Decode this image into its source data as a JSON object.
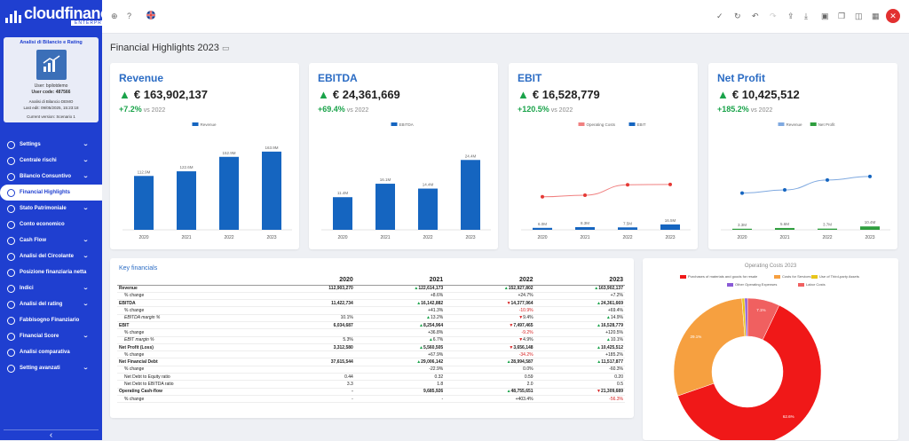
{
  "brand": {
    "name": "cloudfinance",
    "edition": "ENTERPRISE"
  },
  "card": {
    "title": "Analisi di Bilancio e Rating",
    "logo_text": "BILANCIO & RATING",
    "user": "User: bpilotdemo",
    "code": "User code: 487566",
    "analysis": "Analisi di Bilancio DEMO",
    "last": "Last edit: 09/05/2025, 15:23:18",
    "scenario": "Current version: Scenario 1"
  },
  "nav": [
    {
      "label": "Settings",
      "chev": true
    },
    {
      "label": "Centrale rischi",
      "chev": true
    },
    {
      "label": "Bilancio Consuntivo",
      "chev": true
    },
    {
      "label": "Financial Highlights",
      "chev": false,
      "active": true
    },
    {
      "label": "Stato Patrimoniale",
      "chev": true
    },
    {
      "label": "Conto economico",
      "chev": false
    },
    {
      "label": "Cash Flow",
      "chev": true
    },
    {
      "label": "Analisi del Circolante",
      "chev": true
    },
    {
      "label": "Posizione finanziaria netta",
      "chev": false
    },
    {
      "label": "Indici",
      "chev": true
    },
    {
      "label": "Analisi del rating",
      "chev": true
    },
    {
      "label": "Fabbisogno Finanziario",
      "chev": false
    },
    {
      "label": "Financial Score",
      "chev": true
    },
    {
      "label": "Analisi comparativa",
      "chev": false
    },
    {
      "label": "Setting avanzati",
      "chev": true
    }
  ],
  "page": {
    "title": "Financial Highlights 2023"
  },
  "kpis": [
    {
      "title": "Revenue",
      "value": "€ 163,902,137",
      "pct": "+7.2%",
      "vs": "vs 2022"
    },
    {
      "title": "EBITDA",
      "value": "€ 24,361,669",
      "pct": "+69.4%",
      "vs": "vs 2022"
    },
    {
      "title": "EBIT",
      "value": "€ 16,528,779",
      "pct": "+120.5%",
      "vs": "vs 2022"
    },
    {
      "title": "Net Profit",
      "value": "€ 10,425,512",
      "pct": "+185.2%",
      "vs": "vs 2022"
    }
  ],
  "chart_data": [
    {
      "type": "bar",
      "categories": [
        "2020",
        "2021",
        "2022",
        "2023"
      ],
      "series": [
        {
          "name": "Revenue",
          "values": [
            112.9,
            122.6,
            152.9,
            163.9
          ],
          "labels": [
            "112.9M",
            "122.6M",
            "152.9M",
            "163.9M"
          ],
          "color": "#1565c0"
        }
      ]
    },
    {
      "type": "bar",
      "categories": [
        "2020",
        "2021",
        "2022",
        "2023"
      ],
      "series": [
        {
          "name": "EBITDA",
          "values": [
            11.4,
            16.1,
            14.4,
            24.4
          ],
          "labels": [
            "11.4M",
            "16.1M",
            "14.4M",
            "24.4M"
          ],
          "color": "#1565c0"
        }
      ]
    },
    {
      "type": "bar",
      "categories": [
        "2020",
        "2021",
        "2022",
        "2023"
      ],
      "series": [
        {
          "name": "Operating Costs",
          "type": "line",
          "values": [
            101.5,
            106.5,
            138.5,
            139.5
          ],
          "color": "#e53935"
        },
        {
          "name": "EBIT",
          "values": [
            6.0,
            8.3,
            7.5,
            16.5
          ],
          "labels": [
            "6.0M",
            "8.3M",
            "7.5M",
            "16.5M"
          ],
          "color": "#1565c0"
        }
      ]
    },
    {
      "type": "bar",
      "categories": [
        "2020",
        "2021",
        "2022",
        "2023"
      ],
      "series": [
        {
          "name": "Revenue",
          "type": "line",
          "values": [
            112.9,
            122.6,
            152.9,
            163.9
          ],
          "color": "#1565c0"
        },
        {
          "name": "Net Profit",
          "values": [
            3.3,
            5.6,
            3.7,
            10.4
          ],
          "labels": [
            "3.3M",
            "5.6M",
            "3.7M",
            "10.4M"
          ],
          "color": "#2e9e3e"
        }
      ]
    },
    {
      "type": "pie",
      "title": "Operating Costs 2023",
      "labels": [
        "Purchases of materials and goods for resale",
        "Costs for Services",
        "Use of Third-party Assets",
        "Other Operating Expenses",
        "Labor Costs"
      ],
      "values": [
        62.6,
        29.1,
        0.6,
        0.6,
        7.1
      ],
      "value_labels": [
        "62.6%",
        "29.1%",
        "",
        "",
        "7.1%"
      ],
      "colors": [
        "#f01818",
        "#f6a040",
        "#e8c51a",
        "#8a5ad6",
        "#f06060"
      ]
    }
  ],
  "table": {
    "title": "Key financials",
    "years": [
      "2020",
      "2021",
      "2022",
      "2023"
    ],
    "rows": [
      {
        "label": "Revenue",
        "b": 1,
        "v": [
          [
            "112,903,270",
            ""
          ],
          [
            "122,614,173",
            "up"
          ],
          [
            "152,927,802",
            "up"
          ],
          [
            "163,902,137",
            "up"
          ]
        ]
      },
      {
        "label": "% change",
        "v": [
          [
            "",
            ""
          ],
          [
            "+8.6%",
            ""
          ],
          [
            "+24.7%",
            ""
          ],
          [
            "+7.2%",
            ""
          ]
        ]
      },
      {
        "label": "EBITDA",
        "b": 1,
        "v": [
          [
            "11,422,734",
            ""
          ],
          [
            "16,142,882",
            "up"
          ],
          [
            "14,377,964",
            "dn"
          ],
          [
            "24,361,669",
            "up"
          ]
        ]
      },
      {
        "label": "% change",
        "v": [
          [
            "",
            ""
          ],
          [
            "+41.3%",
            ""
          ],
          [
            "-10.9%",
            "neg"
          ],
          [
            "+69.4%",
            ""
          ]
        ]
      },
      {
        "label": "EBITDA margin %",
        "i": 1,
        "v": [
          [
            "10.1%",
            ""
          ],
          [
            "13.2%",
            "up"
          ],
          [
            "9.4%",
            "dn"
          ],
          [
            "14.9%",
            "up"
          ]
        ]
      },
      {
        "label": "EBIT",
        "b": 1,
        "v": [
          [
            "6,034,687",
            ""
          ],
          [
            "8,254,964",
            "up"
          ],
          [
            "7,497,465",
            "dn"
          ],
          [
            "16,528,779",
            "up"
          ]
        ]
      },
      {
        "label": "% change",
        "v": [
          [
            "",
            ""
          ],
          [
            "+36.8%",
            ""
          ],
          [
            "-9.2%",
            "neg"
          ],
          [
            "+120.5%",
            ""
          ]
        ]
      },
      {
        "label": "EBIT margin %",
        "i": 1,
        "v": [
          [
            "5.3%",
            ""
          ],
          [
            "6.7%",
            "up"
          ],
          [
            "4.9%",
            "dn"
          ],
          [
            "10.1%",
            "up"
          ]
        ]
      },
      {
        "label": "Net Profit (Loss)",
        "b": 1,
        "v": [
          [
            "3,312,580",
            ""
          ],
          [
            "5,560,505",
            "up"
          ],
          [
            "3,656,148",
            "dn"
          ],
          [
            "10,425,512",
            "up"
          ]
        ]
      },
      {
        "label": "% change",
        "v": [
          [
            "",
            ""
          ],
          [
            "+67.9%",
            ""
          ],
          [
            "-34.2%",
            "neg"
          ],
          [
            "+185.2%",
            ""
          ]
        ]
      },
      {
        "label": "Net Financial Debt",
        "b": 1,
        "v": [
          [
            "37,615,544",
            ""
          ],
          [
            "29,006,142",
            "up"
          ],
          [
            "28,994,587",
            "up"
          ],
          [
            "11,517,877",
            "up"
          ]
        ]
      },
      {
        "label": "% change",
        "v": [
          [
            "",
            ""
          ],
          [
            "-22.9%",
            ""
          ],
          [
            "0.0%",
            ""
          ],
          [
            "-60.3%",
            ""
          ]
        ]
      },
      {
        "label": "Net Debt to Equity ratio",
        "v": [
          [
            "0.44",
            ""
          ],
          [
            "0.32",
            ""
          ],
          [
            "0.59",
            ""
          ],
          [
            "0.20",
            ""
          ]
        ]
      },
      {
        "label": "Net Debt to EBITDA ratio",
        "v": [
          [
            "3.3",
            ""
          ],
          [
            "1.8",
            ""
          ],
          [
            "2.0",
            ""
          ],
          [
            "0.5",
            ""
          ]
        ]
      },
      {
        "label": "Operating Cash-flow",
        "b": 1,
        "v": [
          [
            "-",
            ""
          ],
          [
            "9,685,926",
            ""
          ],
          [
            "48,755,651",
            "up"
          ],
          [
            "21,309,689",
            "dn"
          ]
        ]
      },
      {
        "label": "% change",
        "v": [
          [
            "-",
            ""
          ],
          [
            "-",
            ""
          ],
          [
            "+403.4%",
            ""
          ],
          [
            "-56.3%",
            "neg"
          ]
        ]
      }
    ]
  }
}
